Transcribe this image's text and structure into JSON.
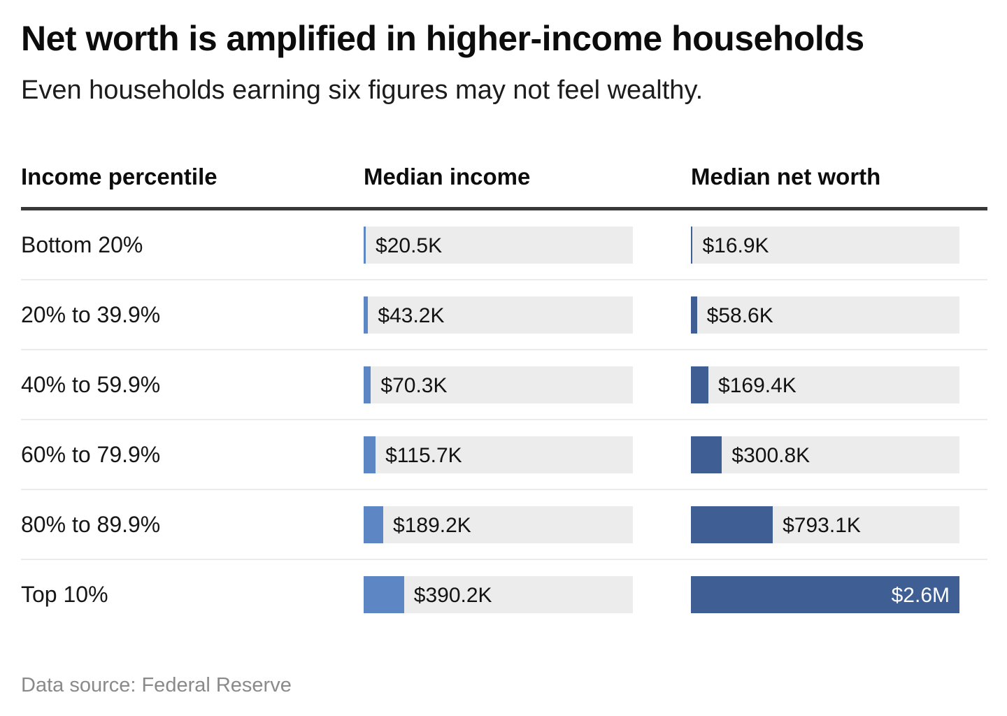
{
  "title": "Net worth is amplified in higher-income households",
  "subtitle": "Even households earning six figures may not feel wealthy.",
  "columns": {
    "percentile": "Income percentile",
    "income": "Median income",
    "net_worth": "Median net worth"
  },
  "source_note": "Data source: Federal Reserve",
  "colors": {
    "income_bar": "#5d86c5",
    "net_worth_bar": "#3e5e94",
    "bar_track": "#ececec",
    "header_divider": "#383838",
    "row_separator": "#ebebeb",
    "inside_bar_text": "#ffffff",
    "source_text": "#8a8a8a"
  },
  "chart_data": {
    "type": "bar",
    "orientation": "horizontal",
    "title": "Net worth is amplified in higher-income households",
    "subtitle": "Even households earning six figures may not feel wealthy.",
    "xlabel": "",
    "ylabel": "Income percentile",
    "grid": false,
    "legend_position": "column-headers",
    "scale_full_track_usd_k": 2600,
    "categories": [
      "Bottom 20%",
      "20% to 39.9%",
      "40% to 59.9%",
      "60% to 79.9%",
      "80% to 89.9%",
      "Top 10%"
    ],
    "series": [
      {
        "name": "Median income",
        "color": "#5d86c5",
        "values_usd_k": [
          20.5,
          43.2,
          70.3,
          115.7,
          189.2,
          390.2
        ],
        "labels": [
          "$20.5K",
          "$43.2K",
          "$70.3K",
          "$115.7K",
          "$189.2K",
          "$390.2K"
        ]
      },
      {
        "name": "Median net worth",
        "color": "#3e5e94",
        "values_usd_k": [
          16.9,
          58.6,
          169.4,
          300.8,
          793.1,
          2600
        ],
        "labels": [
          "$16.9K",
          "$58.6K",
          "$169.4K",
          "$300.8K",
          "$793.1K",
          "$2.6M"
        ]
      }
    ]
  }
}
